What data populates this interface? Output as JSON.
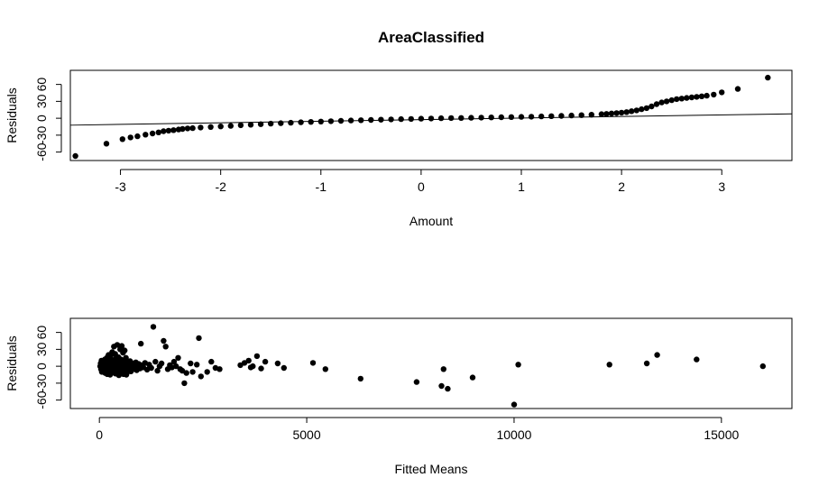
{
  "title": "AreaClassified",
  "chart_data": [
    {
      "type": "scatter",
      "xlabel": "Amount",
      "ylabel": "Residuals",
      "xlim": [
        -3.5,
        3.7
      ],
      "ylim": [
        -75,
        85
      ],
      "xticks": [
        -3,
        -2,
        -1,
        0,
        1,
        2,
        3
      ],
      "yticks": [
        -60,
        -30,
        0,
        30,
        60
      ],
      "yticklabels": [
        "-60",
        "-30",
        "0",
        "30",
        "60"
      ],
      "reference_line": {
        "intercept": -2.5,
        "slope": 2.8
      },
      "points": [
        [
          -3.45,
          -67
        ],
        [
          -3.14,
          -45
        ],
        [
          -2.98,
          -37
        ],
        [
          -2.9,
          -34
        ],
        [
          -2.83,
          -32
        ],
        [
          -2.75,
          -29
        ],
        [
          -2.68,
          -27
        ],
        [
          -2.62,
          -25
        ],
        [
          -2.57,
          -23
        ],
        [
          -2.52,
          -22
        ],
        [
          -2.47,
          -21
        ],
        [
          -2.42,
          -20
        ],
        [
          -2.38,
          -19
        ],
        [
          -2.33,
          -18
        ],
        [
          -2.28,
          -17.5
        ],
        [
          -2.2,
          -16.5
        ],
        [
          -2.1,
          -15.5
        ],
        [
          -2.0,
          -14.5
        ],
        [
          -1.9,
          -13.5
        ],
        [
          -1.8,
          -12.5
        ],
        [
          -1.7,
          -11.5
        ],
        [
          -1.6,
          -10.5
        ],
        [
          -1.5,
          -9.6
        ],
        [
          -1.4,
          -8.8
        ],
        [
          -1.3,
          -8
        ],
        [
          -1.2,
          -7.2
        ],
        [
          -1.1,
          -6.5
        ],
        [
          -1.0,
          -5.8
        ],
        [
          -0.9,
          -5.2
        ],
        [
          -0.8,
          -4.6
        ],
        [
          -0.7,
          -4
        ],
        [
          -0.6,
          -3.5
        ],
        [
          -0.5,
          -3
        ],
        [
          -0.4,
          -2.5
        ],
        [
          -0.3,
          -2
        ],
        [
          -0.2,
          -1.6
        ],
        [
          -0.1,
          -1.2
        ],
        [
          0.0,
          -0.8
        ],
        [
          0.1,
          -0.4
        ],
        [
          0.2,
          0
        ],
        [
          0.3,
          0.3
        ],
        [
          0.4,
          0.6
        ],
        [
          0.5,
          0.9
        ],
        [
          0.6,
          1.2
        ],
        [
          0.7,
          1.5
        ],
        [
          0.8,
          1.8
        ],
        [
          0.9,
          2.1
        ],
        [
          1.0,
          2.4
        ],
        [
          1.1,
          2.8
        ],
        [
          1.2,
          3.2
        ],
        [
          1.3,
          3.7
        ],
        [
          1.4,
          4.2
        ],
        [
          1.5,
          4.8
        ],
        [
          1.6,
          5.5
        ],
        [
          1.7,
          6.3
        ],
        [
          1.8,
          7.2
        ],
        [
          1.85,
          7.8
        ],
        [
          1.9,
          8.5
        ],
        [
          1.95,
          9.2
        ],
        [
          2.0,
          10
        ],
        [
          2.05,
          11
        ],
        [
          2.1,
          12.5
        ],
        [
          2.15,
          14
        ],
        [
          2.2,
          16
        ],
        [
          2.25,
          18
        ],
        [
          2.3,
          21
        ],
        [
          2.35,
          25
        ],
        [
          2.4,
          28
        ],
        [
          2.45,
          30
        ],
        [
          2.5,
          32
        ],
        [
          2.55,
          34
        ],
        [
          2.6,
          35
        ],
        [
          2.65,
          36
        ],
        [
          2.7,
          37
        ],
        [
          2.75,
          38
        ],
        [
          2.8,
          39
        ],
        [
          2.85,
          40
        ],
        [
          2.92,
          42
        ],
        [
          3.0,
          46
        ],
        [
          3.16,
          52
        ],
        [
          3.46,
          72
        ]
      ]
    },
    {
      "type": "scatter",
      "xlabel": "Fitted Means",
      "ylabel": "Residuals",
      "xlim": [
        -700,
        16700
      ],
      "ylim": [
        -75,
        85
      ],
      "xticks": [
        0,
        5000,
        10000,
        15000
      ],
      "xticklabels": [
        "0",
        "5000",
        "10000",
        "15000"
      ],
      "yticks": [
        -60,
        -30,
        0,
        30,
        60
      ],
      "yticklabels": [
        "-60",
        "-30",
        "0",
        "30",
        "60"
      ],
      "points": [
        [
          20,
          0
        ],
        [
          30,
          5
        ],
        [
          40,
          -5
        ],
        [
          50,
          10
        ],
        [
          60,
          -10
        ],
        [
          70,
          2
        ],
        [
          80,
          -2
        ],
        [
          90,
          8
        ],
        [
          100,
          -8
        ],
        [
          110,
          4
        ],
        [
          120,
          -4
        ],
        [
          130,
          12
        ],
        [
          140,
          -12
        ],
        [
          150,
          0
        ],
        [
          160,
          6
        ],
        [
          170,
          -6
        ],
        [
          180,
          15
        ],
        [
          190,
          -14
        ],
        [
          200,
          3
        ],
        [
          210,
          -3
        ],
        [
          220,
          20
        ],
        [
          230,
          -9
        ],
        [
          240,
          9
        ],
        [
          250,
          1
        ],
        [
          260,
          -15
        ],
        [
          270,
          18
        ],
        [
          280,
          -1
        ],
        [
          290,
          7
        ],
        [
          300,
          -7
        ],
        [
          310,
          25
        ],
        [
          320,
          11
        ],
        [
          330,
          -11
        ],
        [
          340,
          3
        ],
        [
          350,
          35
        ],
        [
          360,
          5
        ],
        [
          370,
          -5
        ],
        [
          380,
          22
        ],
        [
          390,
          -13
        ],
        [
          400,
          14
        ],
        [
          410,
          2
        ],
        [
          420,
          -2
        ],
        [
          430,
          38
        ],
        [
          440,
          10
        ],
        [
          450,
          -10
        ],
        [
          460,
          16
        ],
        [
          470,
          -16
        ],
        [
          480,
          6
        ],
        [
          490,
          -6
        ],
        [
          500,
          30
        ],
        [
          510,
          0
        ],
        [
          520,
          12
        ],
        [
          530,
          -12
        ],
        [
          540,
          36
        ],
        [
          550,
          4
        ],
        [
          560,
          -4
        ],
        [
          570,
          24
        ],
        [
          580,
          -14
        ],
        [
          590,
          8
        ],
        [
          600,
          -8
        ],
        [
          610,
          28
        ],
        [
          620,
          2
        ],
        [
          630,
          -2
        ],
        [
          640,
          15
        ],
        [
          650,
          -15
        ],
        [
          660,
          10
        ],
        [
          670,
          -10
        ],
        [
          680,
          6
        ],
        [
          690,
          -6
        ],
        [
          700,
          3
        ],
        [
          720,
          -3
        ],
        [
          740,
          9
        ],
        [
          760,
          -9
        ],
        [
          780,
          1
        ],
        [
          800,
          5
        ],
        [
          820,
          -5
        ],
        [
          840,
          2
        ],
        [
          860,
          -2
        ],
        [
          880,
          7
        ],
        [
          900,
          -7
        ],
        [
          920,
          0
        ],
        [
          950,
          4
        ],
        [
          980,
          -4
        ],
        [
          1000,
          40
        ],
        [
          1030,
          2
        ],
        [
          1060,
          -2
        ],
        [
          1100,
          6
        ],
        [
          1150,
          -6
        ],
        [
          1200,
          3
        ],
        [
          1250,
          -3
        ],
        [
          1300,
          70
        ],
        [
          1350,
          8
        ],
        [
          1400,
          -8
        ],
        [
          1450,
          0
        ],
        [
          1500,
          5
        ],
        [
          1550,
          45
        ],
        [
          1600,
          35
        ],
        [
          1650,
          -5
        ],
        [
          1700,
          2
        ],
        [
          1750,
          -2
        ],
        [
          1800,
          8
        ],
        [
          1850,
          0
        ],
        [
          1900,
          15
        ],
        [
          1950,
          -5
        ],
        [
          2000,
          -8
        ],
        [
          2050,
          -30
        ],
        [
          2100,
          -12
        ],
        [
          2200,
          5
        ],
        [
          2250,
          -10
        ],
        [
          2350,
          3
        ],
        [
          2400,
          50
        ],
        [
          2450,
          -18
        ],
        [
          2600,
          -10
        ],
        [
          2700,
          8
        ],
        [
          2800,
          -3
        ],
        [
          2900,
          -5
        ],
        [
          3400,
          2
        ],
        [
          3500,
          6
        ],
        [
          3600,
          10
        ],
        [
          3650,
          -2
        ],
        [
          3700,
          0
        ],
        [
          3800,
          18
        ],
        [
          3900,
          -4
        ],
        [
          4000,
          8
        ],
        [
          4300,
          5
        ],
        [
          4450,
          -3
        ],
        [
          5150,
          6
        ],
        [
          5450,
          -5
        ],
        [
          6300,
          -22
        ],
        [
          7650,
          -28
        ],
        [
          8250,
          -35
        ],
        [
          8300,
          -5
        ],
        [
          8400,
          -40
        ],
        [
          9000,
          -20
        ],
        [
          10000,
          -68
        ],
        [
          10100,
          3
        ],
        [
          12300,
          3
        ],
        [
          13200,
          5
        ],
        [
          13450,
          20
        ],
        [
          14400,
          12
        ],
        [
          16000,
          0
        ]
      ]
    }
  ]
}
